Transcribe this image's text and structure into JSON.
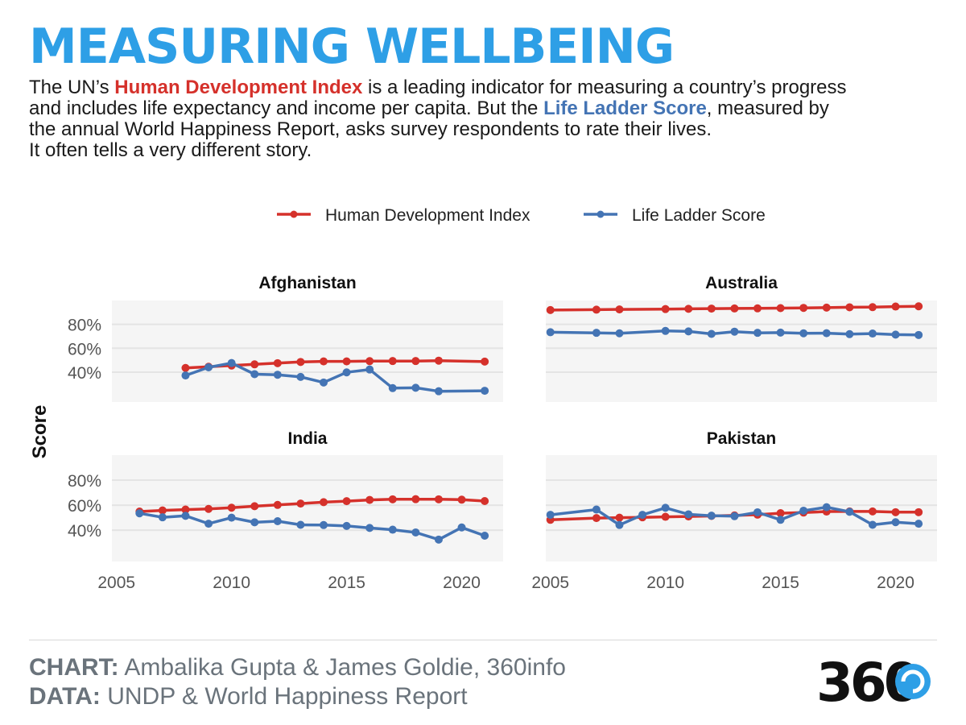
{
  "header": {
    "title": "MEASURING WELLBEING",
    "subtitle": {
      "p1": "The UN’s ",
      "hdi": "Human Development Index",
      "p2": " is a leading indicator for measuring a country’s progress",
      "p3": "and includes life expectancy and income per capita. But the ",
      "lls": "Life Ladder Score",
      "p4": ", measured by",
      "p5": "the annual World Happiness Report, asks survey respondents to rate their lives.",
      "p6": "It often tells a very different story."
    }
  },
  "colors": {
    "title": "#2e9fe6",
    "hdi": "#d5312b",
    "lls": "#4474b4",
    "panel_bg": "#f5f5f5",
    "grid": "#e4e4e4"
  },
  "footer": {
    "chart_label": "CHART:",
    "chart_value": " Ambalika Gupta & James Goldie, 360info",
    "data_label": "DATA:",
    "data_value": " UNDP & World Happiness Report",
    "logo_text": "360"
  },
  "chart_data": {
    "type": "line",
    "ylabel": "Score",
    "ytick_labels": [
      "40%",
      "60%",
      "80%"
    ],
    "yticks": [
      40,
      60,
      80
    ],
    "ylim": [
      15,
      100
    ],
    "xlim": [
      2004.8,
      2021.8
    ],
    "xticks": [
      2005,
      2010,
      2015,
      2020
    ],
    "xtick_labels": [
      "2005",
      "2010",
      "2015",
      "2020"
    ],
    "legend": {
      "placement": "top-center",
      "entries": [
        "Human Development Index",
        "Life Ladder Score"
      ]
    },
    "panels": [
      {
        "title": "Afghanistan",
        "series": [
          {
            "name": "Human Development Index",
            "x": [
              2008,
              2009,
              2010,
              2011,
              2012,
              2013,
              2014,
              2015,
              2016,
              2017,
              2018,
              2019,
              2021
            ],
            "y": [
              43.5,
              44.5,
              45.5,
              46.5,
              47.5,
              48.5,
              49.0,
              49.0,
              49.2,
              49.3,
              49.3,
              49.6,
              48.8
            ]
          },
          {
            "name": "Life Ladder Score",
            "x": [
              2008,
              2009,
              2010,
              2011,
              2012,
              2013,
              2014,
              2015,
              2016,
              2017,
              2018,
              2019,
              2021
            ],
            "y": [
              37.2,
              44.0,
              47.6,
              38.3,
              37.8,
              36.0,
              31.3,
              39.8,
              42.2,
              26.6,
              26.9,
              24.0,
              24.4
            ]
          }
        ]
      },
      {
        "title": "Australia",
        "series": [
          {
            "name": "Human Development Index",
            "x": [
              2005,
              2007,
              2008,
              2010,
              2011,
              2012,
              2013,
              2014,
              2015,
              2016,
              2017,
              2018,
              2019,
              2020,
              2021
            ],
            "y": [
              92.0,
              92.3,
              92.5,
              92.8,
              93.0,
              93.2,
              93.3,
              93.4,
              93.6,
              93.8,
              94.0,
              94.3,
              94.4,
              94.9,
              95.1
            ]
          },
          {
            "name": "Life Ladder Score",
            "x": [
              2005,
              2007,
              2008,
              2010,
              2011,
              2012,
              2013,
              2014,
              2015,
              2016,
              2017,
              2018,
              2019,
              2020,
              2021
            ],
            "y": [
              73.4,
              72.9,
              72.5,
              74.5,
              74.1,
              72.0,
              73.9,
              72.9,
              73.1,
              72.5,
              72.6,
              71.8,
              72.3,
              71.4,
              71.1
            ]
          }
        ]
      },
      {
        "title": "India",
        "series": [
          {
            "name": "Human Development Index",
            "x": [
              2006,
              2007,
              2008,
              2009,
              2010,
              2011,
              2012,
              2013,
              2014,
              2015,
              2016,
              2017,
              2018,
              2019,
              2020,
              2021
            ],
            "y": [
              54.9,
              55.8,
              56.5,
              57.0,
              58.0,
              59.2,
              60.2,
              61.3,
              62.4,
              63.2,
              64.2,
              64.7,
              64.8,
              64.7,
              64.4,
              63.3
            ]
          },
          {
            "name": "Life Ladder Score",
            "x": [
              2006,
              2007,
              2008,
              2009,
              2010,
              2011,
              2012,
              2013,
              2014,
              2015,
              2016,
              2017,
              2018,
              2019,
              2020,
              2021
            ],
            "y": [
              53.5,
              50.3,
              51.5,
              45.2,
              50.0,
              46.3,
              47.2,
              44.3,
              44.1,
              43.4,
              41.8,
              40.4,
              38.2,
              32.5,
              42.2,
              35.6
            ]
          }
        ]
      },
      {
        "title": "Pakistan",
        "series": [
          {
            "name": "Human Development Index",
            "x": [
              2005,
              2007,
              2008,
              2009,
              2010,
              2011,
              2012,
              2013,
              2014,
              2015,
              2016,
              2017,
              2018,
              2019,
              2020,
              2021
            ],
            "y": [
              48.3,
              49.7,
              50.0,
              50.3,
              50.7,
              51.0,
              51.4,
              51.8,
              52.4,
              53.6,
              54.1,
              54.9,
              55.0,
              55.0,
              54.4,
              54.4
            ]
          },
          {
            "name": "Life Ladder Score",
            "x": [
              2005,
              2007,
              2008,
              2009,
              2010,
              2011,
              2012,
              2013,
              2014,
              2015,
              2016,
              2017,
              2018,
              2019,
              2020,
              2021
            ],
            "y": [
              52.3,
              56.5,
              44.2,
              52.3,
              57.9,
              52.7,
              51.6,
              51.2,
              54.3,
              48.3,
              55.6,
              58.4,
              54.7,
              44.3,
              46.4,
              45.2
            ]
          }
        ]
      }
    ]
  }
}
